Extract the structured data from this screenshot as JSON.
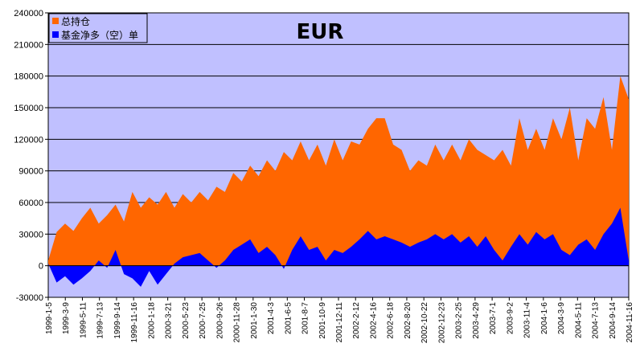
{
  "chart_data": {
    "type": "area",
    "title": "EUR",
    "xlabel": "",
    "ylabel": "",
    "ylim": [
      -30000,
      240000
    ],
    "yticks": [
      -30000,
      0,
      30000,
      60000,
      90000,
      120000,
      150000,
      180000,
      210000,
      240000
    ],
    "grid": true,
    "legend_position": "top-left",
    "x_tick_labels": [
      "1999-1-5",
      "1999-3-9",
      "1999-5-11",
      "1999-7-13",
      "1999-9-14",
      "1999-11-16",
      "2000-1-18",
      "2000-3-21",
      "2000-5-23",
      "2000-7-25",
      "2000-9-26",
      "2000-11-28",
      "2001-1-30",
      "2001-4-3",
      "2001-6-5",
      "2001-8-7",
      "2001-10-9",
      "2001-12-11",
      "2002-2-12",
      "2002-4-16",
      "2002-6-18",
      "2002-8-20",
      "2002-10-22",
      "2002-12-23",
      "2003-2-25",
      "2003-4-29",
      "2003-7-1",
      "2003-9-2",
      "2003-11-4",
      "2004-1-6",
      "2004-3-9",
      "2004-5-11",
      "2004-7-13",
      "2004-9-14",
      "2004-11-16"
    ],
    "x": [
      "1999-1-5",
      "1999-2-5",
      "1999-3-9",
      "1999-4-9",
      "1999-5-11",
      "1999-6-11",
      "1999-7-13",
      "1999-8-13",
      "1999-9-14",
      "1999-10-15",
      "1999-11-16",
      "1999-12-17",
      "2000-1-18",
      "2000-2-18",
      "2000-3-21",
      "2000-4-21",
      "2000-5-23",
      "2000-6-23",
      "2000-7-25",
      "2000-8-25",
      "2000-9-26",
      "2000-10-27",
      "2000-11-28",
      "2000-12-29",
      "2001-1-30",
      "2001-3-2",
      "2001-4-3",
      "2001-5-4",
      "2001-6-5",
      "2001-7-6",
      "2001-8-7",
      "2001-9-7",
      "2001-10-9",
      "2001-11-9",
      "2001-12-11",
      "2002-1-11",
      "2002-2-12",
      "2002-3-15",
      "2002-4-16",
      "2002-5-17",
      "2002-6-18",
      "2002-7-19",
      "2002-8-20",
      "2002-9-20",
      "2002-10-22",
      "2002-11-22",
      "2002-12-23",
      "2003-1-24",
      "2003-2-25",
      "2003-3-28",
      "2003-4-29",
      "2003-5-30",
      "2003-7-1",
      "2003-8-1",
      "2003-9-2",
      "2003-10-3",
      "2003-11-4",
      "2003-12-5",
      "2004-1-6",
      "2004-2-6",
      "2004-3-9",
      "2004-4-9",
      "2004-5-11",
      "2004-6-11",
      "2004-7-13",
      "2004-8-13",
      "2004-9-14",
      "2004-10-15",
      "2004-11-16",
      "2004-12-17"
    ],
    "series": [
      {
        "name": "总持仓",
        "color": "#ff6600",
        "values": [
          5000,
          32000,
          40000,
          33000,
          45000,
          55000,
          40000,
          48000,
          58000,
          42000,
          70000,
          55000,
          65000,
          58000,
          70000,
          55000,
          68000,
          60000,
          70000,
          62000,
          75000,
          70000,
          88000,
          80000,
          95000,
          85000,
          100000,
          90000,
          108000,
          100000,
          118000,
          100000,
          115000,
          95000,
          120000,
          100000,
          118000,
          115000,
          130000,
          140000,
          140000,
          115000,
          110000,
          90000,
          100000,
          95000,
          115000,
          100000,
          115000,
          100000,
          120000,
          110000,
          105000,
          100000,
          110000,
          95000,
          140000,
          110000,
          130000,
          110000,
          140000,
          120000,
          150000,
          100000,
          140000,
          130000,
          160000,
          110000,
          180000,
          158000
        ]
      },
      {
        "name": "基金净多（空）单",
        "color": "#0000ff",
        "values": [
          2000,
          -16000,
          -10000,
          -18000,
          -12000,
          -5000,
          5000,
          -2000,
          15000,
          -8000,
          -12000,
          -20000,
          -5000,
          -18000,
          -8000,
          2000,
          8000,
          10000,
          12000,
          5000,
          -2000,
          5000,
          15000,
          20000,
          25000,
          12000,
          18000,
          10000,
          -3000,
          15000,
          28000,
          15000,
          18000,
          5000,
          15000,
          12000,
          18000,
          25000,
          33000,
          25000,
          28000,
          25000,
          22000,
          18000,
          22000,
          25000,
          30000,
          25000,
          30000,
          22000,
          28000,
          18000,
          28000,
          15000,
          5000,
          18000,
          30000,
          20000,
          32000,
          25000,
          30000,
          15000,
          10000,
          20000,
          25000,
          15000,
          30000,
          40000,
          55000,
          5000
        ]
      }
    ]
  }
}
